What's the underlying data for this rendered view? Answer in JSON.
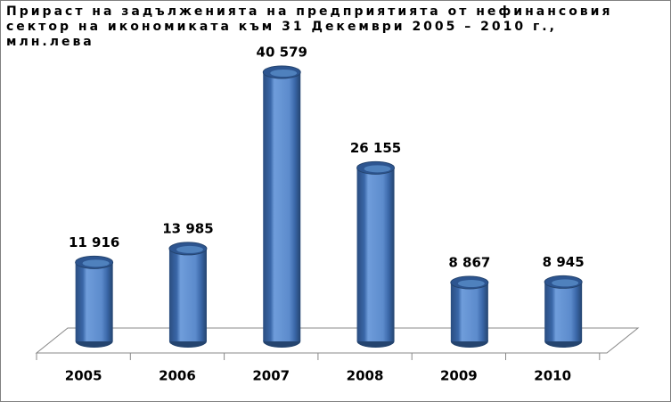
{
  "chart_data": {
    "type": "bar",
    "title": "Прираст на задълженията на предприятията от нефинансовия сектор на икономиката към 31 Декември 2005 – 2010 г., млн.лева",
    "categories": [
      "2005",
      "2006",
      "2007",
      "2008",
      "2009",
      "2010"
    ],
    "values": [
      11916,
      13985,
      40579,
      26155,
      8867,
      8945
    ],
    "value_labels": [
      "11 916",
      "13 985",
      "40 579",
      "26 155",
      "8 867",
      "8 945"
    ],
    "color": "#4f81bd"
  }
}
